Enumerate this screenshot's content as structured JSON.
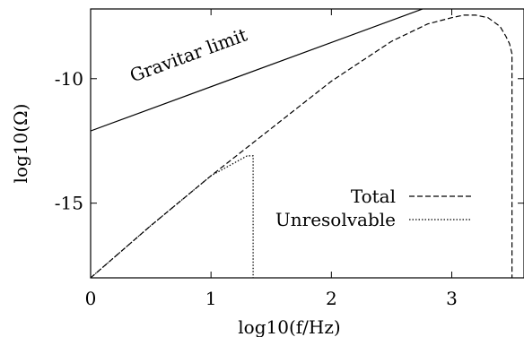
{
  "chart_data": {
    "type": "line",
    "title": "",
    "xlabel": "log10(f/Hz)",
    "ylabel": "log10(Ω)",
    "xlim": [
      0,
      3.6
    ],
    "ylim": [
      -18,
      -7.2
    ],
    "xticks": [
      {
        "value": 0,
        "label": "0"
      },
      {
        "value": 1,
        "label": "1"
      },
      {
        "value": 2,
        "label": "2"
      },
      {
        "value": 3,
        "label": "3"
      }
    ],
    "yticks": [
      {
        "value": -10,
        "label": "-10"
      },
      {
        "value": -15,
        "label": "-15"
      }
    ],
    "grid": false,
    "legend_position": "bottom-right",
    "annotation": {
      "text": "Gravitar limit"
    },
    "series": [
      {
        "name": "",
        "style": "solid",
        "x": [
          0,
          2.7,
          3.6
        ],
        "y": [
          -12.1,
          -7.3,
          -5.7
        ]
      },
      {
        "name": "Total",
        "style": "dashed",
        "x": [
          0,
          0.5,
          1.0,
          1.5,
          2.0,
          2.5,
          2.8,
          3.0,
          3.1,
          3.2,
          3.3,
          3.4,
          3.45,
          3.48,
          3.5,
          3.5
        ],
        "y": [
          -18.0,
          -15.9,
          -13.9,
          -12.0,
          -10.1,
          -8.5,
          -7.8,
          -7.55,
          -7.45,
          -7.45,
          -7.55,
          -7.9,
          -8.3,
          -8.6,
          -9.0,
          -18.0
        ]
      },
      {
        "name": "Unresolvable",
        "style": "dotted",
        "x": [
          0,
          0.5,
          1.0,
          1.3,
          1.35,
          1.35
        ],
        "y": [
          -18.0,
          -15.9,
          -13.9,
          -13.1,
          -13.1,
          -18.0
        ]
      }
    ]
  }
}
